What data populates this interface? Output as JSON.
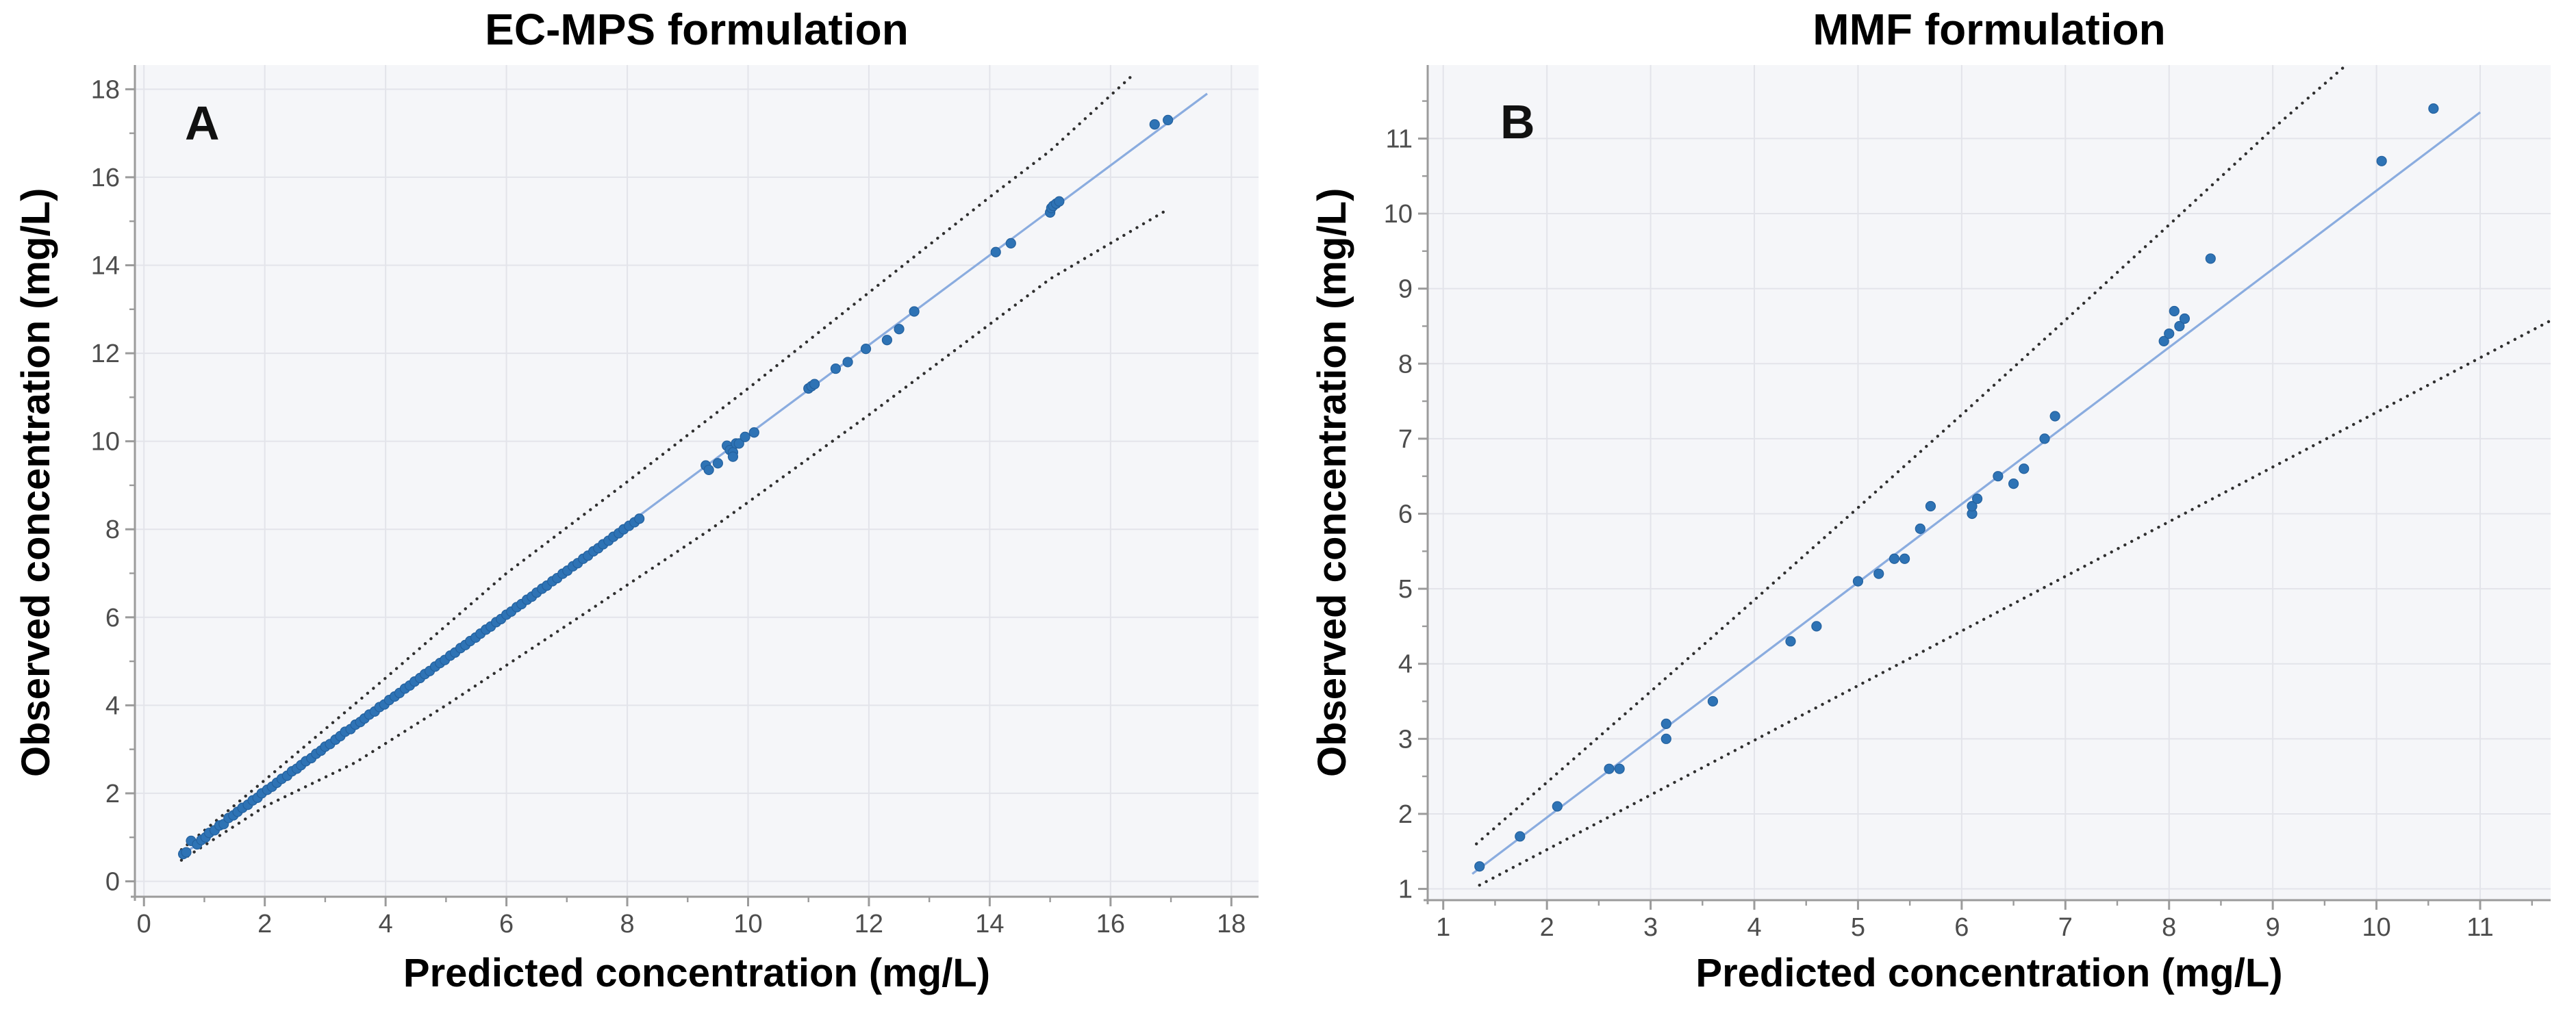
{
  "colors": {
    "point": "#2E73B5",
    "point_edge": "#24619E",
    "identity_line": "#8AACDF",
    "band": "#2F2F2F",
    "grid": "#E3E4EA",
    "axis": "#9B9B9B",
    "tick_text": "#4D4D4D",
    "plot_bg": "#F5F6F9",
    "title": "#000000"
  },
  "chart_data": [
    {
      "panel_label": "A",
      "type": "scatter",
      "title": "EC-MPS formulation",
      "xlabel": "Predicted concentration (mg/L)",
      "ylabel": "Observed concentration (mg/L)",
      "xlim": [
        -0.15,
        18.45
      ],
      "ylim": [
        -0.35,
        18.55
      ],
      "x_ticks": [
        0,
        2,
        4,
        6,
        8,
        10,
        12,
        14,
        16,
        18
      ],
      "y_ticks": [
        0,
        2,
        4,
        6,
        8,
        10,
        12,
        14,
        16,
        18
      ],
      "x_minor_ticks": [
        1,
        3,
        5,
        7,
        9,
        11,
        13,
        15,
        17
      ],
      "y_minor_ticks": [
        1,
        3,
        5,
        7,
        9,
        11,
        13,
        15,
        17
      ],
      "grid": true,
      "legend_position": "none",
      "identity_line": {
        "x": [
          0.62,
          17.6
        ],
        "y": [
          0.58,
          17.9
        ]
      },
      "upper_band": [
        [
          0.62,
          0.72
        ],
        [
          2,
          2.3
        ],
        [
          4,
          4.62
        ],
        [
          6,
          7.0
        ],
        [
          8,
          9.08
        ],
        [
          10,
          11.2
        ],
        [
          12,
          13.38
        ],
        [
          14,
          15.55
        ],
        [
          15,
          16.6
        ],
        [
          16.35,
          18.3
        ]
      ],
      "lower_band": [
        [
          0.62,
          0.48
        ],
        [
          2,
          1.7
        ],
        [
          3.5,
          2.7
        ],
        [
          5,
          4.0
        ],
        [
          7.2,
          6.0
        ],
        [
          9.38,
          8.0
        ],
        [
          12,
          10.6
        ],
        [
          15,
          13.69
        ],
        [
          16.9,
          15.23
        ]
      ],
      "points": [
        [
          0.65,
          0.62
        ],
        [
          0.7,
          0.66
        ],
        [
          0.78,
          0.92
        ],
        [
          0.88,
          0.84
        ],
        [
          0.95,
          0.94
        ],
        [
          1.02,
          1.0
        ],
        [
          1.08,
          1.1
        ],
        [
          1.17,
          1.16
        ],
        [
          1.25,
          1.27
        ],
        [
          1.32,
          1.3
        ],
        [
          1.4,
          1.44
        ],
        [
          1.48,
          1.5
        ],
        [
          1.55,
          1.58
        ],
        [
          1.63,
          1.67
        ],
        [
          1.72,
          1.74
        ],
        [
          1.8,
          1.84
        ],
        [
          1.88,
          1.9
        ],
        [
          1.95,
          2.0
        ],
        [
          2.04,
          2.08
        ],
        [
          2.12,
          2.15
        ],
        [
          2.2,
          2.24
        ],
        [
          2.28,
          2.33
        ],
        [
          2.37,
          2.4
        ],
        [
          2.45,
          2.5
        ],
        [
          2.53,
          2.56
        ],
        [
          2.6,
          2.64
        ],
        [
          2.68,
          2.73
        ],
        [
          2.77,
          2.8
        ],
        [
          2.85,
          2.9
        ],
        [
          2.93,
          2.97
        ],
        [
          3.0,
          3.06
        ],
        [
          3.08,
          3.12
        ],
        [
          3.17,
          3.22
        ],
        [
          3.25,
          3.3
        ],
        [
          3.33,
          3.4
        ],
        [
          3.42,
          3.46
        ],
        [
          3.5,
          3.56
        ],
        [
          3.58,
          3.62
        ],
        [
          3.65,
          3.7
        ],
        [
          3.73,
          3.79
        ],
        [
          3.82,
          3.86
        ],
        [
          3.9,
          3.96
        ],
        [
          3.98,
          4.02
        ],
        [
          4.06,
          4.12
        ],
        [
          4.15,
          4.2
        ],
        [
          4.23,
          4.28
        ],
        [
          4.32,
          4.38
        ],
        [
          4.4,
          4.45
        ],
        [
          4.48,
          4.54
        ],
        [
          4.57,
          4.62
        ],
        [
          4.65,
          4.71
        ],
        [
          4.73,
          4.78
        ],
        [
          4.82,
          4.88
        ],
        [
          4.9,
          4.96
        ],
        [
          4.98,
          5.03
        ],
        [
          5.07,
          5.13
        ],
        [
          5.15,
          5.2
        ],
        [
          5.24,
          5.3
        ],
        [
          5.32,
          5.37
        ],
        [
          5.4,
          5.46
        ],
        [
          5.49,
          5.54
        ],
        [
          5.57,
          5.63
        ],
        [
          5.66,
          5.72
        ],
        [
          5.74,
          5.79
        ],
        [
          5.83,
          5.89
        ],
        [
          5.91,
          5.96
        ],
        [
          6.0,
          6.06
        ],
        [
          6.08,
          6.13
        ],
        [
          6.17,
          6.23
        ],
        [
          6.25,
          6.3
        ],
        [
          6.34,
          6.4
        ],
        [
          6.42,
          6.47
        ],
        [
          6.5,
          6.56
        ],
        [
          6.59,
          6.65
        ],
        [
          6.67,
          6.72
        ],
        [
          6.76,
          6.82
        ],
        [
          6.84,
          6.89
        ],
        [
          6.93,
          6.99
        ],
        [
          7.01,
          7.06
        ],
        [
          7.1,
          7.16
        ],
        [
          7.18,
          7.23
        ],
        [
          7.27,
          7.33
        ],
        [
          7.35,
          7.4
        ],
        [
          7.44,
          7.5
        ],
        [
          7.52,
          7.57
        ],
        [
          7.6,
          7.66
        ],
        [
          7.69,
          7.74
        ],
        [
          7.77,
          7.83
        ],
        [
          7.86,
          7.91
        ],
        [
          7.94,
          8.0
        ],
        [
          8.03,
          8.08
        ],
        [
          8.12,
          8.16
        ],
        [
          8.2,
          8.24
        ],
        [
          9.3,
          9.45
        ],
        [
          9.35,
          9.35
        ],
        [
          9.5,
          9.5
        ],
        [
          9.65,
          9.9
        ],
        [
          9.7,
          9.8
        ],
        [
          9.75,
          9.75
        ],
        [
          9.75,
          9.65
        ],
        [
          9.8,
          9.95
        ],
        [
          9.85,
          9.95
        ],
        [
          9.95,
          10.1
        ],
        [
          10.1,
          10.2
        ],
        [
          11.0,
          11.2
        ],
        [
          11.05,
          11.25
        ],
        [
          11.1,
          11.3
        ],
        [
          11.45,
          11.65
        ],
        [
          11.65,
          11.8
        ],
        [
          11.95,
          12.1
        ],
        [
          12.3,
          12.3
        ],
        [
          12.5,
          12.55
        ],
        [
          12.75,
          12.95
        ],
        [
          14.1,
          14.3
        ],
        [
          14.35,
          14.5
        ],
        [
          15.0,
          15.2
        ],
        [
          15.02,
          15.3
        ],
        [
          15.05,
          15.35
        ],
        [
          15.1,
          15.4
        ],
        [
          15.15,
          15.45
        ],
        [
          16.73,
          17.2
        ],
        [
          16.95,
          17.3
        ]
      ]
    },
    {
      "panel_label": "B",
      "type": "scatter",
      "title": "MMF formulation",
      "xlabel": "Predicted concentration (mg/L)",
      "ylabel": "Observed concentration (mg/L)",
      "xlim": [
        0.85,
        11.68
      ],
      "ylim": [
        0.85,
        11.98
      ],
      "x_ticks": [
        1,
        2,
        3,
        4,
        5,
        6,
        7,
        8,
        9,
        10,
        11
      ],
      "y_ticks": [
        1,
        2,
        3,
        4,
        5,
        6,
        7,
        8,
        9,
        10,
        11
      ],
      "x_minor_ticks": [
        1.5,
        2.5,
        3.5,
        4.5,
        5.5,
        6.5,
        7.5,
        8.5,
        9.5,
        10.5,
        11.5
      ],
      "y_minor_ticks": [
        1.5,
        2.5,
        3.5,
        4.5,
        5.5,
        6.5,
        7.5,
        8.5,
        9.5,
        10.5,
        11.5
      ],
      "grid": true,
      "legend_position": "none",
      "identity_line": {
        "x": [
          1.28,
          11.0
        ],
        "y": [
          1.2,
          11.35
        ]
      },
      "upper_band": [
        [
          1.32,
          1.6
        ],
        [
          2,
          2.42
        ],
        [
          3,
          3.63
        ],
        [
          4,
          4.85
        ],
        [
          5,
          6.08
        ],
        [
          6,
          7.32
        ],
        [
          7,
          8.58
        ],
        [
          8,
          9.85
        ],
        [
          9,
          11.13
        ],
        [
          9.7,
          11.97
        ]
      ],
      "lower_band": [
        [
          1.35,
          1.05
        ],
        [
          11.66,
          8.56
        ]
      ],
      "points": [
        [
          1.35,
          1.3
        ],
        [
          1.74,
          1.7
        ],
        [
          2.1,
          2.1
        ],
        [
          2.6,
          2.6
        ],
        [
          2.7,
          2.6
        ],
        [
          3.15,
          3.0
        ],
        [
          3.15,
          3.2
        ],
        [
          3.6,
          3.5
        ],
        [
          4.35,
          4.3
        ],
        [
          4.6,
          4.5
        ],
        [
          5.0,
          5.1
        ],
        [
          5.2,
          5.2
        ],
        [
          5.35,
          5.4
        ],
        [
          5.45,
          5.4
        ],
        [
          5.6,
          5.8
        ],
        [
          5.7,
          6.1
        ],
        [
          6.1,
          6.0
        ],
        [
          6.1,
          6.1
        ],
        [
          6.15,
          6.2
        ],
        [
          6.35,
          6.5
        ],
        [
          6.5,
          6.4
        ],
        [
          6.6,
          6.6
        ],
        [
          6.8,
          7.0
        ],
        [
          6.9,
          7.3
        ],
        [
          7.95,
          8.3
        ],
        [
          8.0,
          8.4
        ],
        [
          8.05,
          8.7
        ],
        [
          8.1,
          8.5
        ],
        [
          8.15,
          8.6
        ],
        [
          8.4,
          9.4
        ],
        [
          10.05,
          10.7
        ],
        [
          10.55,
          11.4
        ]
      ]
    }
  ]
}
